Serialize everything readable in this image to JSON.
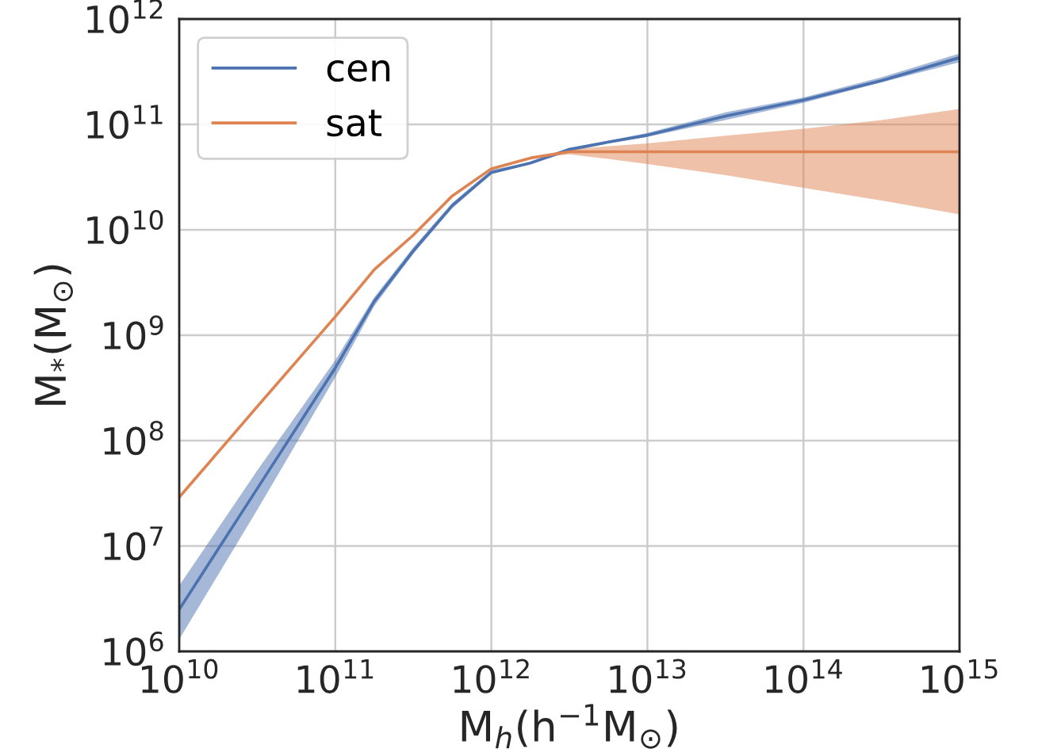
{
  "chart_data": {
    "type": "line",
    "xlabel": "M$_{h}$(h$^{−1}$M$_{⊙}$)",
    "ylabel": "M$_{*}$(M$_{⊙}$)",
    "x": [
      10000000000.0,
      31600000000.0,
      100000000000.0,
      178000000000.0,
      316000000000.0,
      562000000000.0,
      1000000000000.0,
      1780000000000.0,
      3160000000000.0,
      5620000000000.0,
      10000000000000.0,
      31600000000000.0,
      100000000000000.0,
      316000000000000.0,
      1000000000000000.0
    ],
    "series": [
      {
        "name": "cen",
        "color": "#4c72b0",
        "values": [
          2500000.0,
          35000000.0,
          490000000.0,
          2100000000.0,
          6300000000.0,
          17000000000.0,
          35000000000.0,
          43000000000.0,
          58000000000.0,
          68000000000.0,
          79000000000.0,
          120000000000.0,
          170000000000.0,
          260000000000.0,
          430000000000.0
        ],
        "lower": [
          1300000.0,
          22000000.0,
          400000000.0,
          1900000000.0,
          5900000000.0,
          16000000000.0,
          34000000000.0,
          42000000000.0,
          55000000000.0,
          66000000000.0,
          76000000000.0,
          110000000000.0,
          160000000000.0,
          250000000000.0,
          390000000000.0
        ],
        "upper": [
          4200000.0,
          52000000.0,
          580000000.0,
          2300000000.0,
          6800000000.0,
          18000000000.0,
          37000000000.0,
          44000000000.0,
          60000000000.0,
          70000000000.0,
          83000000000.0,
          130000000000.0,
          180000000000.0,
          280000000000.0,
          470000000000.0
        ]
      },
      {
        "name": "sat",
        "color": "#dd8452",
        "values": [
          29000000.0,
          210000000.0,
          1500000000.0,
          4200000000.0,
          8900000000.0,
          21000000000.0,
          38000000000.0,
          48000000000.0,
          55000000000.0,
          55000000000.0,
          55000000000.0,
          55000000000.0,
          55000000000.0,
          55000000000.0,
          55000000000.0
        ],
        "lower": [
          29000000.0,
          210000000.0,
          1500000000.0,
          4200000000.0,
          8900000000.0,
          21000000000.0,
          38000000000.0,
          48000000000.0,
          52000000000.0,
          47000000000.0,
          42000000000.0,
          33000000000.0,
          25000000000.0,
          19000000000.0,
          14000000000.0
        ],
        "upper": [
          29000000.0,
          210000000.0,
          1500000000.0,
          4200000000.0,
          8900000000.0,
          21000000000.0,
          38000000000.0,
          48000000000.0,
          58000000000.0,
          62000000000.0,
          66000000000.0,
          78000000000.0,
          91000000000.0,
          110000000000.0,
          140000000000.0
        ]
      }
    ],
    "log": "xy",
    "xlim": [
      10000000000.0,
      1000000000000000.0
    ],
    "ylim": [
      1000000.0,
      1000000000000.0
    ],
    "xticks": [
      {
        "value": 10000000000.0,
        "label": "10$^{10}$"
      },
      {
        "value": 100000000000.0,
        "label": "10$^{11}$"
      },
      {
        "value": 1000000000000.0,
        "label": "10$^{12}$"
      },
      {
        "value": 10000000000000.0,
        "label": "10$^{13}$"
      },
      {
        "value": 100000000000000.0,
        "label": "10$^{14}$"
      },
      {
        "value": 1000000000000000.0,
        "label": "10$^{15}$"
      }
    ],
    "yticks": [
      {
        "value": 1000000.0,
        "label": "10$^{6}$"
      },
      {
        "value": 10000000.0,
        "label": "10$^{7}$"
      },
      {
        "value": 100000000.0,
        "label": "10$^{8}$"
      },
      {
        "value": 1000000000.0,
        "label": "10$^{9}$"
      },
      {
        "value": 10000000000.0,
        "label": "10$^{10}$"
      },
      {
        "value": 100000000000.0,
        "label": "10$^{11}$"
      },
      {
        "value": 1000000000000.0,
        "label": "10$^{12}$"
      }
    ],
    "grid": true,
    "legend": "top left"
  }
}
